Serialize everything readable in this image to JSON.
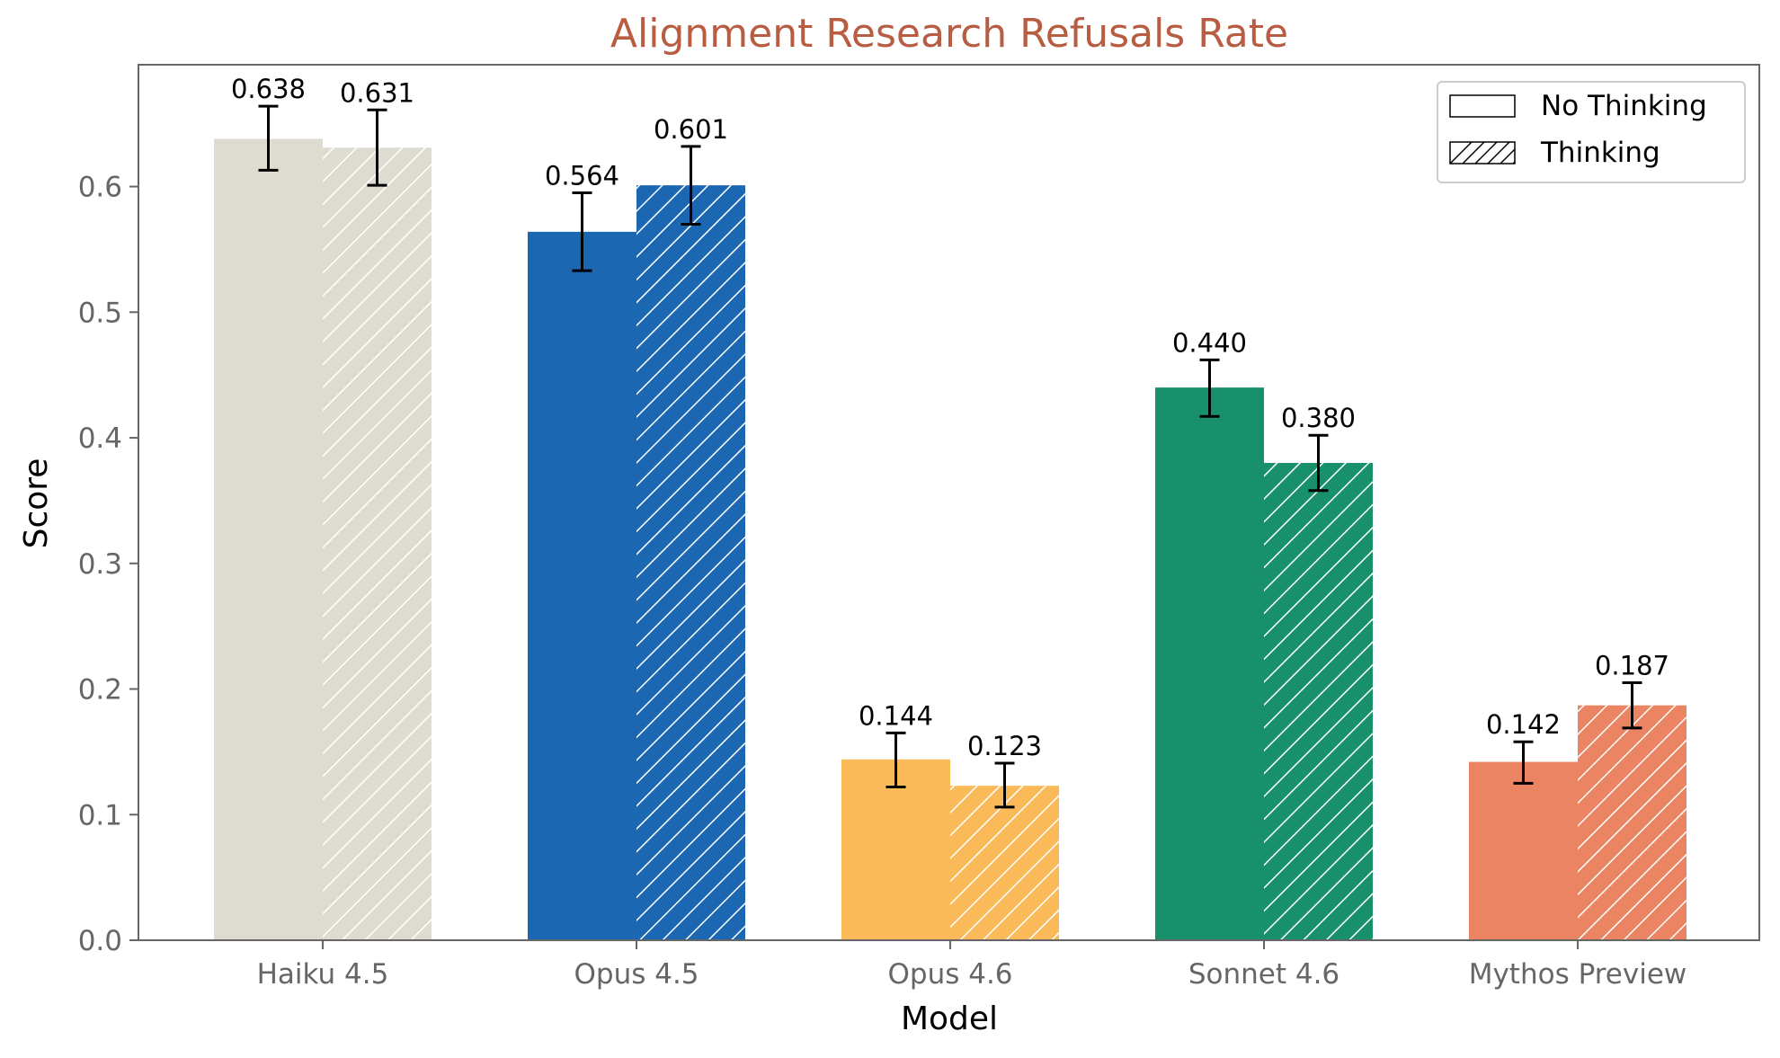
{
  "chart_data": {
    "type": "bar",
    "title": "Alignment Research Refusals Rate",
    "xlabel": "Model",
    "ylabel": "Score",
    "ylim": [
      0,
      0.697
    ],
    "yticks": [
      "0.0",
      "0.1",
      "0.2",
      "0.3",
      "0.4",
      "0.5",
      "0.6"
    ],
    "grid": false,
    "legend_position": "top-right",
    "categories": [
      "Haiku 4.5",
      "Opus 4.5",
      "Opus 4.6",
      "Sonnet 4.6",
      "Mythos Preview"
    ],
    "colors": [
      "#DEDCD1",
      "#1B67B2",
      "#FABA5A",
      "#18906B",
      "#EB8462"
    ],
    "title_color": "#B85C42",
    "series": [
      {
        "name": "No Thinking",
        "hatch": "none",
        "values": [
          0.638,
          0.564,
          0.144,
          0.44,
          0.142
        ],
        "labels": [
          "0.638",
          "0.564",
          "0.144",
          "0.440",
          "0.142"
        ],
        "err_low": [
          0.613,
          0.533,
          0.122,
          0.417,
          0.125
        ],
        "err_high": [
          0.664,
          0.595,
          0.165,
          0.462,
          0.158
        ]
      },
      {
        "name": "Thinking",
        "hatch": "diagonal",
        "values": [
          0.631,
          0.601,
          0.123,
          0.38,
          0.187
        ],
        "labels": [
          "0.631",
          "0.601",
          "0.123",
          "0.380",
          "0.187"
        ],
        "err_low": [
          0.601,
          0.57,
          0.106,
          0.358,
          0.169
        ],
        "err_high": [
          0.661,
          0.632,
          0.141,
          0.402,
          0.205
        ]
      }
    ]
  }
}
